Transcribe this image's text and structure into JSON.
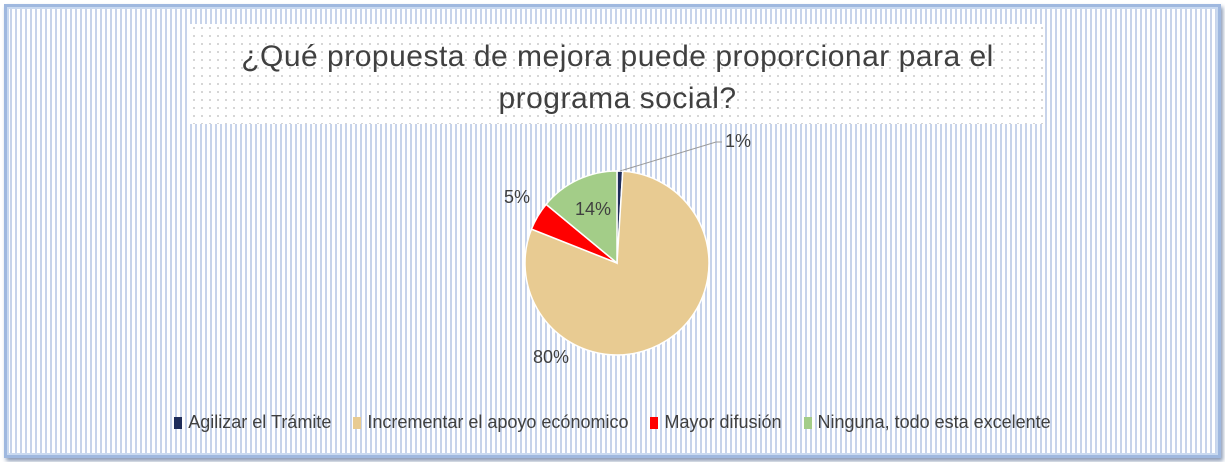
{
  "chart_data": {
    "type": "pie",
    "title": [
      "¿Qué propuesta de mejora puede proporcionar para el",
      "programa social?"
    ],
    "categories": [
      "Agilizar el Trámite",
      "Incrementar el apoyo ecónomico",
      "Mayor difusión",
      "Ninguna, todo esta excelente"
    ],
    "values": [
      1,
      80,
      5,
      14
    ],
    "value_labels": [
      "1%",
      "80%",
      "5%",
      "14%"
    ],
    "colors": [
      "#1f2d5a",
      "#e8cb92",
      "#ff0000",
      "#a3cd88"
    ],
    "legend": "bottom"
  }
}
